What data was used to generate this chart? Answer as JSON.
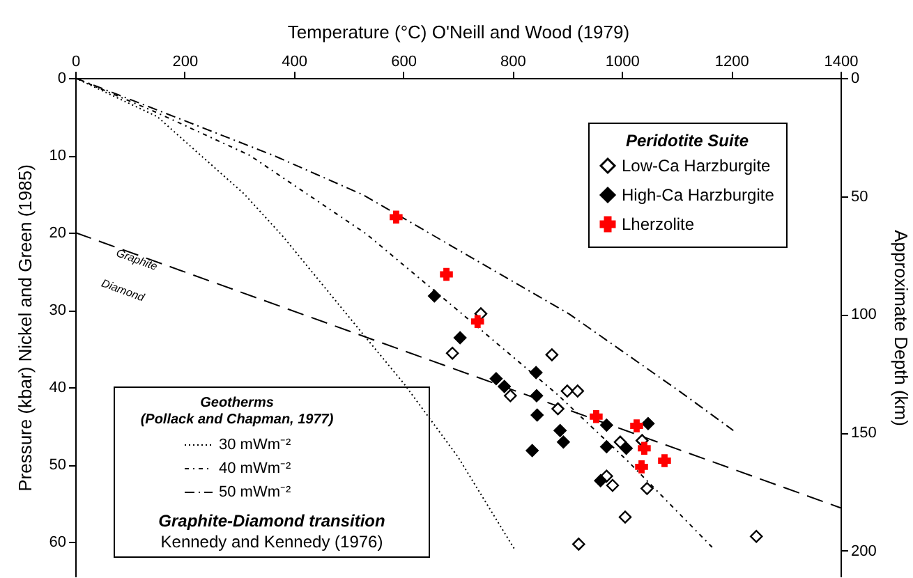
{
  "chart_data": {
    "type": "scatter",
    "xlabel": "Temperature (°C) O'Neill and Wood (1979)",
    "ylabel": "Pressure (kbar) Nickel and Green (1985)",
    "y2label": "Approximate Depth (km)",
    "legend_title": "Peridotite Suite",
    "legend": "top right",
    "xlim": [
      0,
      1400
    ],
    "xticks": [
      0,
      200,
      400,
      600,
      800,
      1000,
      1200,
      1400
    ],
    "ylim": [
      64.5,
      0
    ],
    "yticks": [
      0,
      10,
      20,
      30,
      40,
      50,
      60
    ],
    "y2lim": [
      211,
      0
    ],
    "y2ticks": [
      0,
      50,
      100,
      150,
      200
    ],
    "series": [
      {
        "name": "Low-Ca Harzburgite",
        "type": "scatter",
        "marker": "diamond",
        "color": "#ffffff",
        "x": [
          742,
          690,
          872,
          796,
          900,
          919,
          883,
          997,
          1037,
          972,
          983,
          1046,
          1006,
          921,
          1246
        ],
        "values": [
          30.5,
          35.6,
          35.8,
          41.1,
          40.5,
          40.5,
          42.8,
          47.1,
          46.9,
          51.5,
          52.7,
          53.1,
          56.8,
          60.3,
          59.3
        ]
      },
      {
        "name": "High-Ca Harzburgite",
        "type": "scatter",
        "marker": "diamond",
        "color": "#000000",
        "x": [
          657,
          704,
          770,
          785,
          843,
          844,
          845,
          887,
          893,
          836,
          972,
          1048,
          972,
          1008,
          961
        ],
        "values": [
          28.2,
          33.6,
          38.9,
          39.9,
          38.1,
          41.1,
          43.6,
          45.6,
          47.1,
          48.2,
          44.9,
          44.7,
          47.7,
          47.9,
          52.1
        ]
      },
      {
        "name": "Lherzolite",
        "type": "scatter",
        "marker": "cross",
        "color": "#ff0000",
        "x": [
          587,
          679,
          736,
          953,
          1027,
          1041,
          1078,
          1036
        ],
        "values": [
          18.0,
          25.4,
          31.5,
          43.8,
          45.0,
          47.9,
          49.5,
          50.3
        ]
      },
      {
        "name": "30 mWm⁻²",
        "type": "line",
        "line_style": "dotted",
        "color": "#000000",
        "x": [
          0,
          150,
          309,
          380,
          533,
          602,
          700,
          804
        ],
        "values": [
          0,
          5,
          15,
          20.5,
          33.7,
          39.6,
          49,
          61
        ]
      },
      {
        "name": "40 mWm⁻²",
        "type": "line",
        "line_style": "dashed",
        "color": "#000000",
        "x": [
          0,
          150,
          319,
          533,
          704,
          883,
          1010,
          1168
        ],
        "values": [
          0,
          4.5,
          10,
          20.2,
          30.3,
          41,
          49.5,
          60.9
        ]
      },
      {
        "name": "50 mWm⁻²",
        "type": "line",
        "line_style": "dashdot",
        "color": "#000000",
        "x": [
          0,
          362,
          526,
          903,
          1105,
          1204
        ],
        "values": [
          0,
          10,
          15.1,
          30.5,
          40.5,
          45.6
        ]
      },
      {
        "type": "line",
        "line_style": "longdash",
        "color": "#000000",
        "x": [
          0,
          1400
        ],
        "values": [
          20,
          55.6
        ]
      }
    ],
    "annotations": [
      "Geotherms",
      "(Pollack and Chapman, 1977)",
      "Graphite-Diamond transition",
      "Kennedy and Kennedy (1976)",
      "Graphite",
      "Diamond"
    ]
  }
}
